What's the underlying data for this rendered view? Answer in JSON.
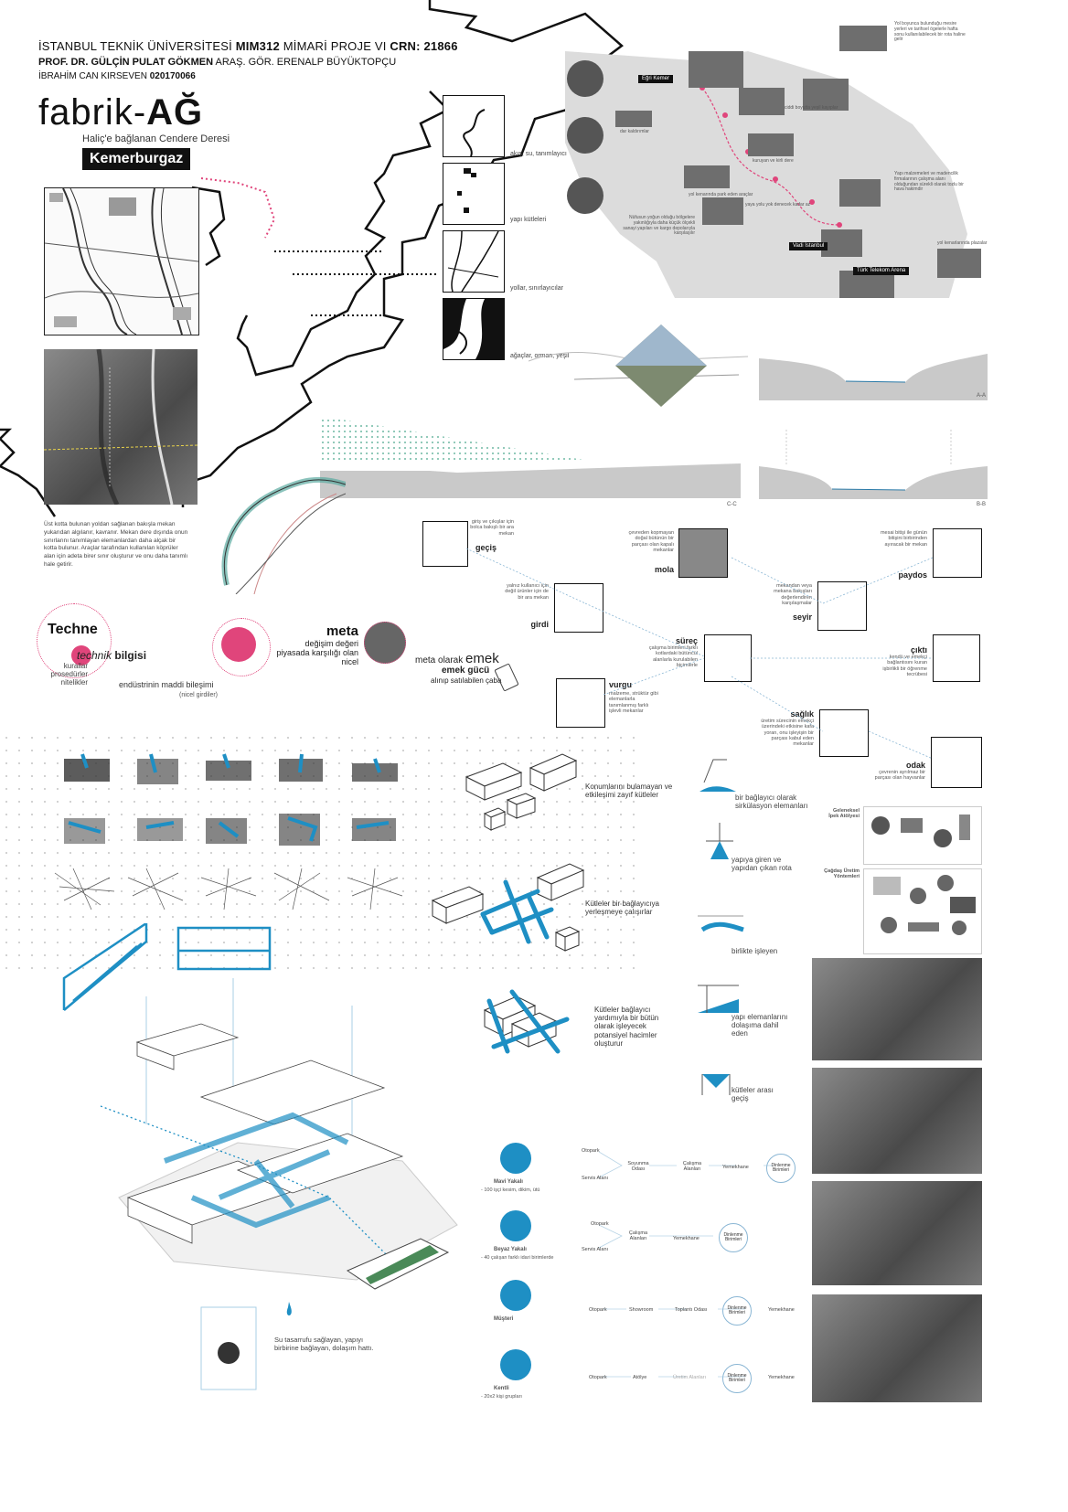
{
  "header": {
    "line1_a": "İSTANBUL TEKNİK ÜNİVERSİTESİ ",
    "line1_b": "MIM312",
    "line1_c": " MİMARİ PROJE VI ",
    "line1_d": "CRN: 21866",
    "line2_a": "PROF. DR. GÜLÇİN PULAT GÖKMEN",
    "line2_b": " ARAŞ. GÖR. ERENALP BÜYÜKTOPÇU",
    "line3_a": "İBRAHİM CAN KIRSEVEN ",
    "line3_b": "020170066"
  },
  "title": {
    "main_a": "fabrik-",
    "main_b": "AĞ",
    "subtitle": "Haliç'e bağlanan Cendere Deresi",
    "location": "Kemerburgaz"
  },
  "analysis": {
    "layer1": "akış, su, tanımlayıcı",
    "layer2": "yapı kütleleri",
    "layer3": "yollar, sınırlayıcılar",
    "layer4": "ağaçlar, orman, yeşil"
  },
  "map": {
    "label1": "Eğri Kemer",
    "label2": "Vadi İstanbul",
    "label3": "Türk Telekom Arena",
    "note1": "Yol boyunca bulunduğu mesire yerleri ve tarihsel ögelerle hafta sonu kullanılabilecek bir rota haline gelir",
    "note2": "Yapı malzemeleri ve madencilik firmalarının çalışma alanı olduğundan sürekli olarak tozlu bir hava hakimdir",
    "note3": "Nüfusun yoğun olduğu bölgelere yakınlığıyla daha küçük ölçekli sanayi yapıları ve kargo depolarıyla karşılaşılır",
    "small1": "ciddi boyutta yeşil kayıplar",
    "small2": "kuruyan ve kirli dere",
    "small3": "yol kenarında park eden araçlar",
    "small4": "dar kaldırımlar",
    "small5": "yaya yolu yok denecek kadar az",
    "small6": "yol kenarlarında plazalar"
  },
  "sections": {
    "aa": "A-A",
    "bb": "B-B",
    "cc": "C-C"
  },
  "aerial_caption": "Üst kotta bulunan yoldan sağlanan bakışla mekan yukarıdan algılanır, kavranır. Mekan dere dışında onun sınırlarını tanımlayan elemanlardan daha alçak bir kotta bulunur. Araçlar tarafından kullanılan köprüler alan için adeta birer sınır oluşturur ve onu daha tanımlı hale getirir.",
  "concept": {
    "techne": "Techne",
    "technik": "technik",
    "bilgisi": " bilgisi",
    "kurallar": "kurallar",
    "prosedurler": "prosedürler",
    "nitelikler": "nitelikler",
    "endustri": "endüstrinin maddi bileşimi",
    "nicel_girdiler": "(nicel girdiler)",
    "meta": "meta",
    "degisim": "değişim değeri",
    "piyasada": "piyasada karşılığı olan",
    "nicel": "nicel",
    "meta_olarak": "meta olarak ",
    "emek": "emek",
    "emek_gucu": "emek gücü",
    "alinip": "alınıp satılabilen çaba"
  },
  "scenes": {
    "gecis_desc": "giriş ve çıkışlar için bolca bakışlı bir ara mekan",
    "gecis": "geçiş",
    "mola_desc": "çevreden kopmayan doğal bütünün bir parçası olan kapalı mekanlar",
    "mola": "mola",
    "paydos_desc": "mesai bitişi ile günün bitişini birbirinden ayıracak bir mekan",
    "paydos": "paydos",
    "girdi_desc": "yalnız kullanıcı için değil ürünler için de bir ara mekan",
    "girdi": "girdi",
    "seyir_desc": "mekandan veya mekana bakışları değerlendiren karşılaşmalar",
    "seyir": "seyir",
    "surec": "süreç",
    "surec_desc": "çalışma birimleri farklı kotlardaki bütüncül alanlarla kurulabilen biçimlerle",
    "cikti": "çıktı",
    "cikti_desc": "kendü ve emekçi bağlantısını kuran işbirlikli bir öğrenme tecrübesi",
    "vurgu": "vurgu",
    "vurgu_desc": "malzeme, strüktür gibi elemanlarla tanımlanmış farklı işlevli mekanlar",
    "saglik": "sağlık",
    "saglik_desc": "üretim sürecinin emekçi üzerindeki etkisine kafa yoran, onu işleyişin bir parçası kabul eden mekanlar",
    "odak": "odak",
    "odak_desc": "çevrenin ayrılmaz bir parçası olan hayvanlar"
  },
  "massing": {
    "step1": "Konumlarını bulamayan ve etkileşimi zayıf kütleler",
    "step2": "Kütleler bir bağlayıcıya yerleşmeye çalışırlar",
    "step3": "Kütleler bağlayıcı yardımıyla bir bütün olarak işleyecek potansiyel hacimler oluşturur"
  },
  "connector": {
    "c1": "bir bağlayıcı olarak sirkülasyon elemanları",
    "c2": "yapıya giren ve yapıdan çıkan rota",
    "c3": "birlikte işleyen",
    "c4": "yapı elemanlarını dolaşıma dahil eden",
    "c5": "kütleler arası geçiş"
  },
  "production": {
    "traditional": "Geleneksel İpek Atölyesi",
    "modern": "Çağdaş Üretim Yöntemleri"
  },
  "axo_note": "Su tasarrufu sağlayan, yapıyı birbirine bağlayan, dolaşım hattı.",
  "users": [
    {
      "name": "Mavi Yakalı",
      "desc": "- 100 işçi kesim, dikim, ütü"
    },
    {
      "name": "Beyaz Yakalı",
      "desc": "- 40 çalışan farklı idari birimlerde"
    },
    {
      "name": "Müşteri",
      "desc": ""
    },
    {
      "name": "Kentli",
      "desc": "- 20x2 kişi grupları"
    }
  ],
  "flows": {
    "f1": {
      "a": "Otopark",
      "b": "Servis Alanı",
      "c": "Soyunma Odası",
      "d": "Çalışma Alanları",
      "e": "Yemekhane",
      "f": "Dinlenme Birimleri"
    },
    "f2": {
      "a": "Otopark",
      "b": "Servis Alanı",
      "c": "Çalışma Alanları",
      "d": "Yemekhane",
      "e": "Dinlenme Birimleri"
    },
    "f3": {
      "a": "Otopark",
      "b": "Showroom",
      "c": "Toplantı Odası",
      "d": "Dinlenme Birimleri",
      "e": "Yemekhane"
    },
    "f4": {
      "a": "Otopark",
      "b": "Atölye",
      "c": "Üretim Alanları",
      "d": "Dinlenme Birimleri",
      "e": "Yemekhane"
    }
  },
  "colors": {
    "accent": "#1e8fc4",
    "pink": "#e0457b",
    "dark": "#111111"
  }
}
